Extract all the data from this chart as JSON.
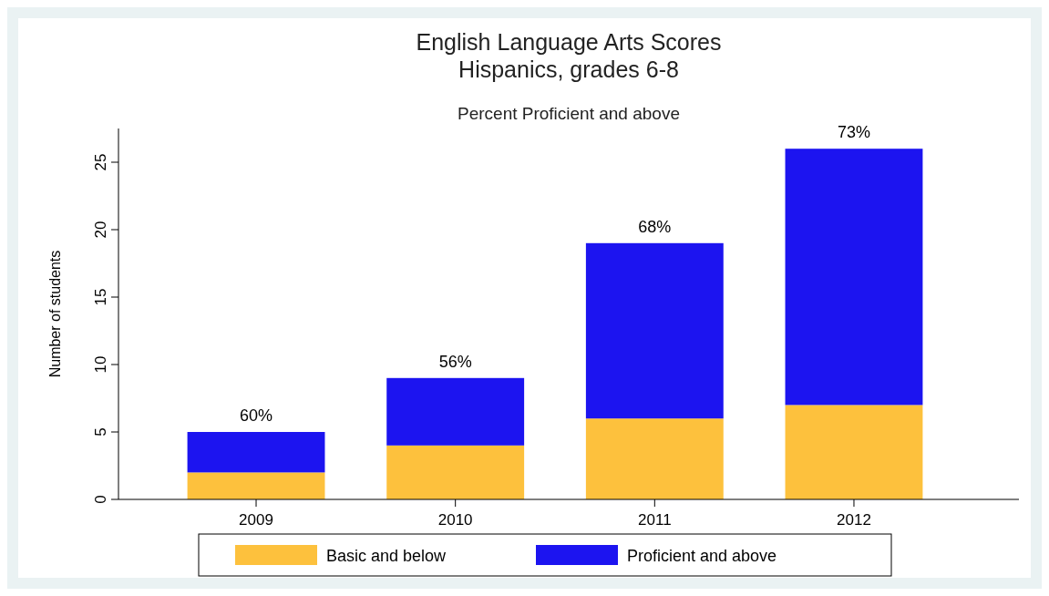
{
  "chart_data": {
    "type": "bar",
    "title": "English Language Arts Scores\nHispanics, grades 6-8",
    "subtitle": "Percent Proficient and above",
    "ylabel": "Number of students",
    "categories": [
      "2009",
      "2010",
      "2011",
      "2012"
    ],
    "stacked": true,
    "series": [
      {
        "name": "Basic and below",
        "color": "#fdc13d",
        "values": [
          2,
          4,
          6,
          7
        ]
      },
      {
        "name": "Proficient and above",
        "color": "#1c14f0",
        "values": [
          3,
          5,
          13,
          19
        ]
      }
    ],
    "ylim": [
      0,
      27.5
    ],
    "yticks": [
      0,
      5,
      10,
      15,
      20,
      25
    ],
    "grid": false,
    "legend": "bottom",
    "annotations": [
      {
        "text": "60%",
        "x": "2009",
        "y": 5
      },
      {
        "text": "56%",
        "x": "2010",
        "y": 9
      },
      {
        "text": "68%",
        "x": "2011",
        "y": 19
      },
      {
        "text": "73%",
        "x": "2012",
        "y": 26
      }
    ]
  }
}
